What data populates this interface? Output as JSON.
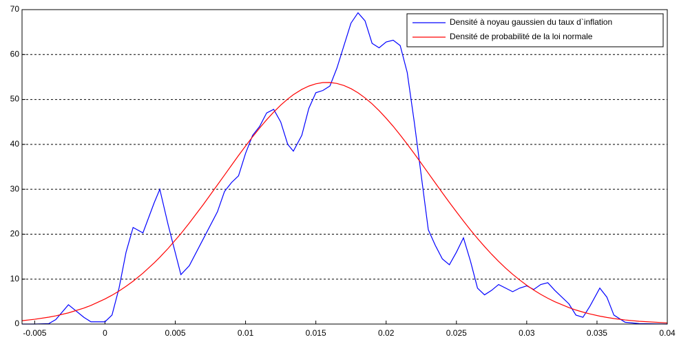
{
  "chart_data": {
    "type": "line",
    "x": [
      -0.0059,
      -0.005,
      -0.004,
      -0.0035,
      -0.0026,
      -0.0015,
      -0.001,
      0,
      0.0005,
      0.001,
      0.0015,
      0.002,
      0.0027,
      0.0035,
      0.0039,
      0.0045,
      0.0054,
      0.006,
      0.007,
      0.008,
      0.0085,
      0.009,
      0.0095,
      0.01,
      0.0105,
      0.011,
      0.0115,
      0.012,
      0.0125,
      0.013,
      0.0134,
      0.014,
      0.0145,
      0.015,
      0.0155,
      0.016,
      0.0165,
      0.017,
      0.0175,
      0.018,
      0.0185,
      0.019,
      0.0195,
      0.02,
      0.0205,
      0.021,
      0.0215,
      0.022,
      0.0225,
      0.023,
      0.0235,
      0.024,
      0.0245,
      0.025,
      0.0255,
      0.026,
      0.0265,
      0.027,
      0.0275,
      0.028,
      0.0285,
      0.029,
      0.0295,
      0.03,
      0.0305,
      0.031,
      0.0315,
      0.032,
      0.033,
      0.0335,
      0.034,
      0.0345,
      0.0352,
      0.0357,
      0.0362,
      0.037,
      0.038,
      0.04
    ],
    "series": [
      {
        "name": "Densité à noyau gaussien du taux d`inflation",
        "color": "#0000ff",
        "values": [
          0,
          0,
          0.1,
          1,
          4.3,
          1.5,
          0.5,
          0.5,
          2,
          8,
          16,
          21.5,
          20.3,
          27,
          30,
          22,
          11,
          13,
          19,
          25,
          29.5,
          31.5,
          33,
          38,
          42,
          44,
          47,
          47.8,
          45,
          40,
          38.5,
          42,
          48,
          51.5,
          52,
          53,
          57,
          62,
          67,
          69.3,
          67.5,
          62.5,
          61.5,
          62.8,
          63.2,
          62,
          56,
          45,
          33,
          21,
          17.5,
          14.5,
          13.2,
          16,
          19.2,
          14,
          8,
          6.5,
          7.5,
          8.8,
          8,
          7.2,
          8,
          8.5,
          7.7,
          8.8,
          9.2,
          7.5,
          4.5,
          2,
          1.5,
          4,
          8,
          6,
          2,
          0.4,
          0.1,
          0
        ]
      },
      {
        "name": "Densité de probabilité de la loi normale",
        "color": "#ff0000",
        "values": [
          0.75,
          1.06,
          1.53,
          1.83,
          2.49,
          3.55,
          4.15,
          5.58,
          6.42,
          7.35,
          8.4,
          9.54,
          11.33,
          13.62,
          14.87,
          16.87,
          20.13,
          22.49,
          26.63,
          30.98,
          33.15,
          35.35,
          37.53,
          39.63,
          41.69,
          43.64,
          45.48,
          47.19,
          48.74,
          50.1,
          51.06,
          52.24,
          52.98,
          53.49,
          53.76,
          53.78,
          53.56,
          53.1,
          52.41,
          51.49,
          50.35,
          49.02,
          47.51,
          45.83,
          44.03,
          42.09,
          40.06,
          37.95,
          35.79,
          33.59,
          31.4,
          29.22,
          27.08,
          24.98,
          22.94,
          20.95,
          19.05,
          17.26,
          15.55,
          13.95,
          12.46,
          11.08,
          9.81,
          8.63,
          7.57,
          6.61,
          5.74,
          4.97,
          3.66,
          3.12,
          2.66,
          2.25,
          1.76,
          1.47,
          1.23,
          0.91,
          0.61,
          0.26
        ]
      }
    ],
    "xlim": [
      -0.0059,
      0.04
    ],
    "xticks": [
      -0.005,
      0,
      0.005,
      0.01,
      0.015,
      0.02,
      0.025,
      0.03,
      0.035,
      0.04
    ],
    "ylim": [
      0,
      70
    ],
    "yticks": [
      0,
      10,
      20,
      30,
      40,
      50,
      60,
      70
    ],
    "grid": "y",
    "legend": "upper right"
  }
}
